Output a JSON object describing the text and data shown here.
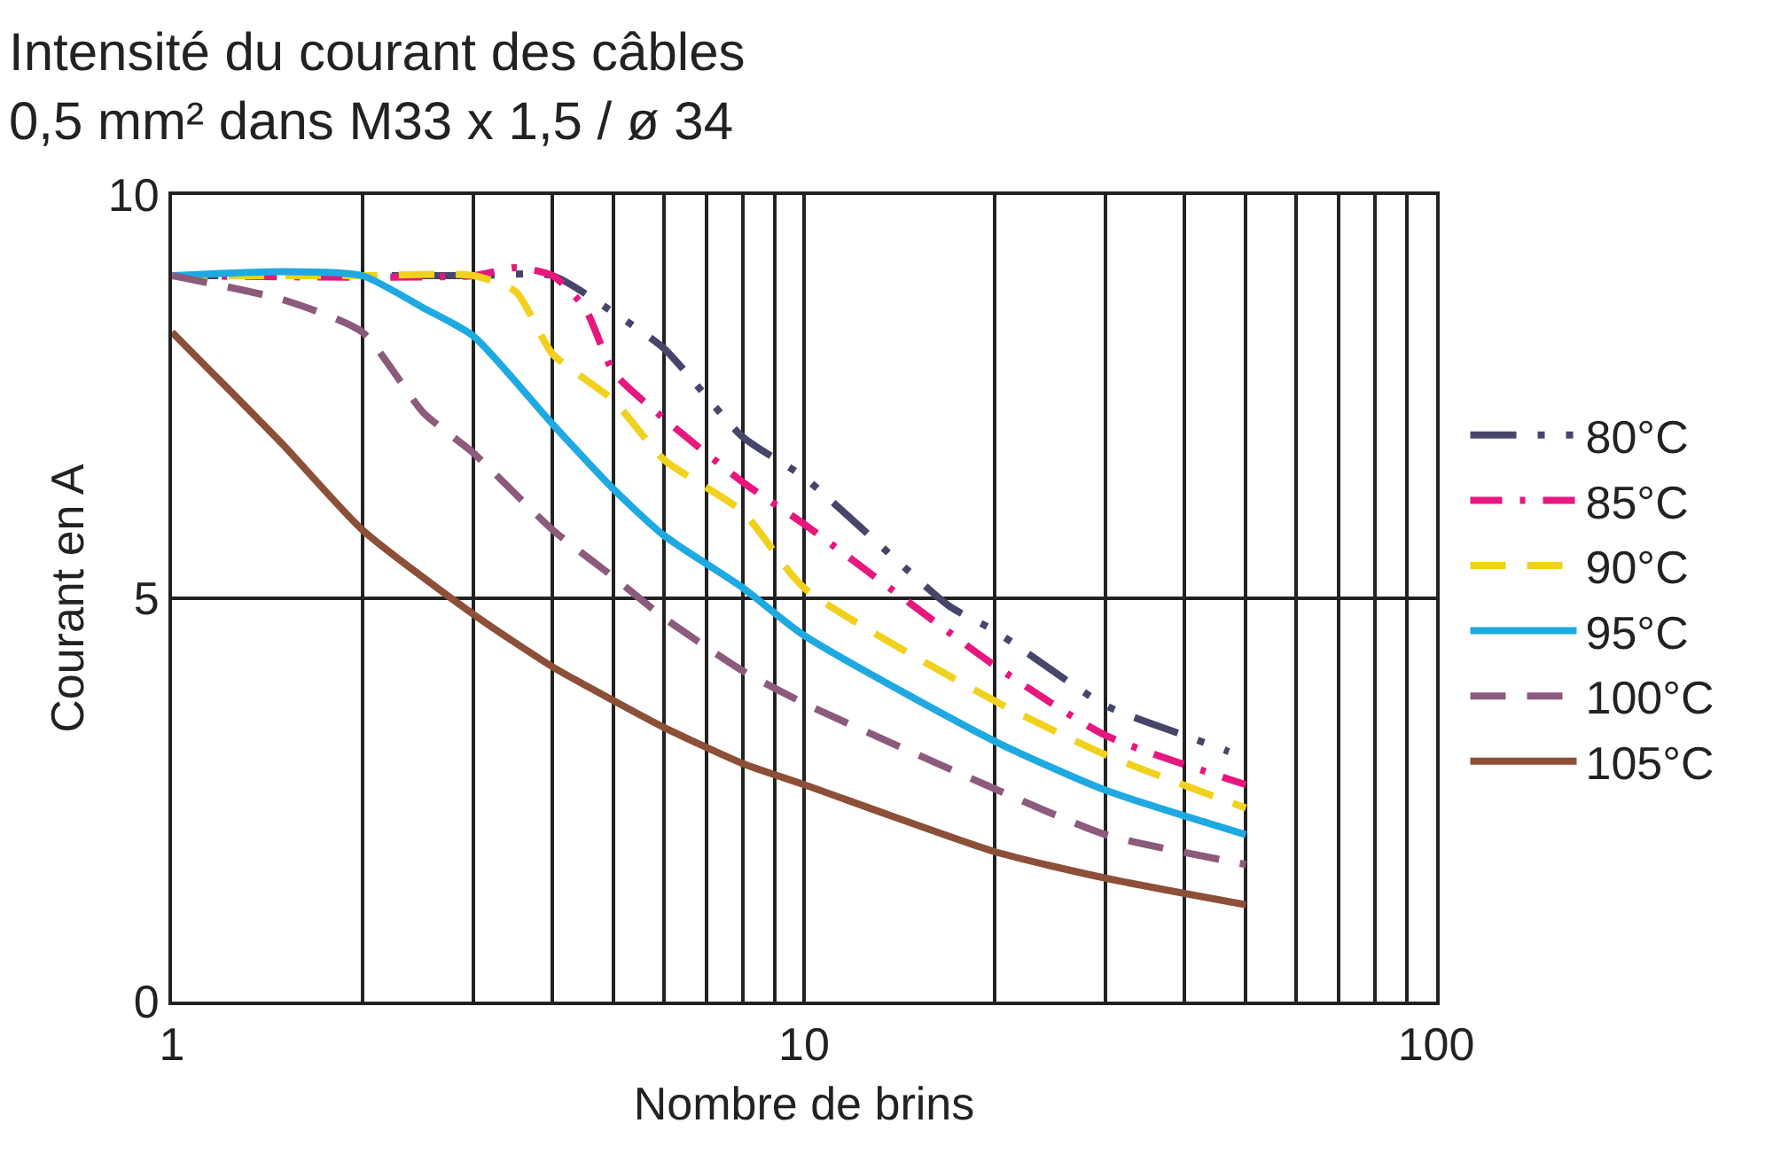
{
  "chart_data": {
    "type": "line",
    "title": "Intensité du courant des câbles",
    "subtitle": "0,5 mm² dans M33 x 1,5 / ø 34",
    "xlabel": "Nombre de brins",
    "ylabel": "Courant en A",
    "log": "x",
    "xlim": [
      1,
      100
    ],
    "ylim": [
      0,
      10
    ],
    "xticks": [
      1,
      {
        "value": 2,
        "label": null
      },
      {
        "value": 3,
        "label": null
      },
      {
        "value": 4,
        "label": null
      },
      {
        "value": 5,
        "label": null
      },
      {
        "value": 6,
        "label": null
      },
      {
        "value": 7,
        "label": null
      },
      {
        "value": 8,
        "label": null
      },
      {
        "value": 9,
        "label": null
      },
      10,
      {
        "value": 20,
        "label": null
      },
      {
        "value": 30,
        "label": null
      },
      {
        "value": 40,
        "label": null
      },
      {
        "value": 50,
        "label": null
      },
      {
        "value": 60,
        "label": null
      },
      {
        "value": 70,
        "label": null
      },
      {
        "value": 80,
        "label": null
      },
      {
        "value": 90,
        "label": null
      },
      100
    ],
    "yticks": [
      0,
      5,
      10
    ],
    "grid": true,
    "legend": "right",
    "marker": "none",
    "series": [
      {
        "name": "80°C",
        "color": "#46466a",
        "line_style": "dashdotdot",
        "x": [
          1,
          2,
          3,
          4,
          5,
          6,
          8,
          10,
          17,
          20,
          30,
          40,
          47
        ],
        "values": [
          9.0,
          9.0,
          9.0,
          9.0,
          8.54,
          8.1,
          7.0,
          6.5,
          4.9,
          4.6,
          3.67,
          3.3,
          3.1
        ]
      },
      {
        "name": "85°C",
        "color": "#e6177f",
        "line_style": "dashdot",
        "x": [
          1,
          3,
          3.5,
          4,
          4.5,
          5,
          6,
          8,
          10,
          20,
          30,
          50
        ],
        "values": [
          9.0,
          9.0,
          9.1,
          9.0,
          8.6,
          7.8,
          7.23,
          6.44,
          5.92,
          4.17,
          3.3,
          2.69
        ]
      },
      {
        "name": "90°C",
        "color": "#f0d21e",
        "line_style": "dashed",
        "x": [
          1,
          2,
          3,
          3.5,
          4,
          5,
          6,
          8,
          10,
          20,
          30,
          50
        ],
        "values": [
          9.0,
          9.0,
          9.0,
          8.8,
          8.03,
          7.45,
          6.72,
          6.07,
          5.13,
          3.73,
          3.06,
          2.4
        ]
      },
      {
        "name": "95°C",
        "color": "#1fa9e1",
        "line_style": "solid",
        "x": [
          1,
          1.5,
          2,
          2.5,
          3,
          4,
          5,
          6,
          8,
          10,
          20,
          30,
          50
        ],
        "values": [
          9.0,
          9.05,
          9.0,
          8.6,
          8.25,
          7.16,
          6.35,
          5.78,
          5.13,
          4.54,
          3.23,
          2.62,
          2.07
        ]
      },
      {
        "name": "100°C",
        "color": "#8c5a7d",
        "line_style": "dashed",
        "x": [
          1,
          1.5,
          2,
          2.5,
          3,
          4,
          5,
          6,
          8,
          10,
          20,
          30,
          50
        ],
        "values": [
          9.0,
          8.7,
          8.3,
          7.3,
          6.8,
          5.85,
          5.26,
          4.76,
          4.1,
          3.7,
          2.64,
          2.07,
          1.7
        ]
      },
      {
        "name": "105°C",
        "color": "#8c4f38",
        "line_style": "solid",
        "x": [
          1,
          1.5,
          2,
          3,
          4,
          5,
          6,
          8,
          10,
          20,
          30,
          50
        ],
        "values": [
          8.3,
          6.9,
          5.85,
          4.8,
          4.15,
          3.73,
          3.4,
          2.95,
          2.69,
          1.86,
          1.53,
          1.2
        ]
      }
    ]
  }
}
